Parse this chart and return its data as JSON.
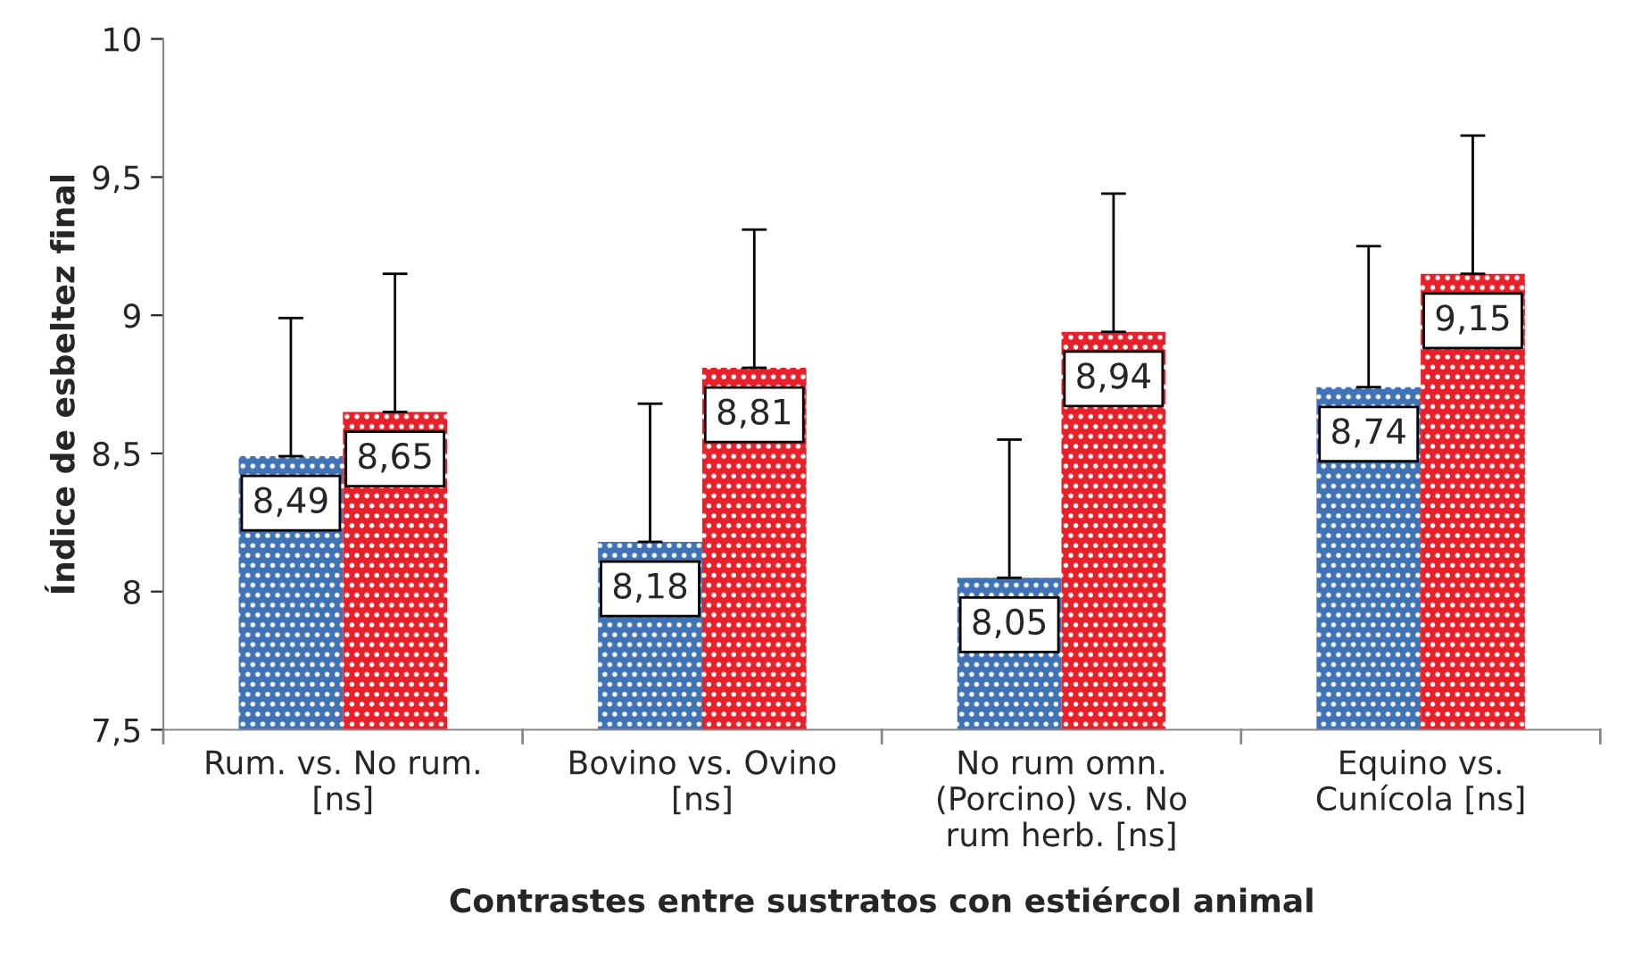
{
  "chart_data": {
    "type": "bar",
    "xlabel": "Contrastes entre sustratos con estiércol animal",
    "ylabel": "Índice de esbeltez final",
    "categories": [
      "Rum. vs. No rum.\n[ns]",
      "Bovino vs. Ovino\n[ns]",
      "No rum omn.\n(Porcino) vs. No\nrum herb. [ns]",
      "Equino vs.\nCunícola [ns]"
    ],
    "series": [
      {
        "color": "#3f73b5",
        "values": [
          8.49,
          8.18,
          8.05,
          8.74
        ],
        "value_labels": [
          "8,49",
          "8,18",
          "8,05",
          "8,74"
        ],
        "errors": [
          [
            8.49,
            8.99
          ],
          [
            8.18,
            8.68
          ],
          [
            8.05,
            8.55
          ],
          [
            8.74,
            9.25
          ]
        ]
      },
      {
        "color": "#e8202a",
        "values": [
          8.65,
          8.81,
          8.94,
          9.15
        ],
        "value_labels": [
          "8,65",
          "8,81",
          "8,94",
          "9,15"
        ],
        "errors": [
          [
            8.65,
            9.15
          ],
          [
            8.81,
            9.31
          ],
          [
            8.94,
            9.44
          ],
          [
            9.15,
            9.65
          ]
        ]
      }
    ],
    "ylim": [
      7.5,
      10
    ],
    "yticks": [
      {
        "value": 7.5,
        "label": "7,5"
      },
      {
        "value": 8,
        "label": "8"
      },
      {
        "value": 8.5,
        "label": "8,5"
      },
      {
        "value": 9,
        "label": "9"
      },
      {
        "value": 9.5,
        "label": "9,5"
      },
      {
        "value": 10,
        "label": "10"
      }
    ],
    "grid": false,
    "legend": false
  }
}
